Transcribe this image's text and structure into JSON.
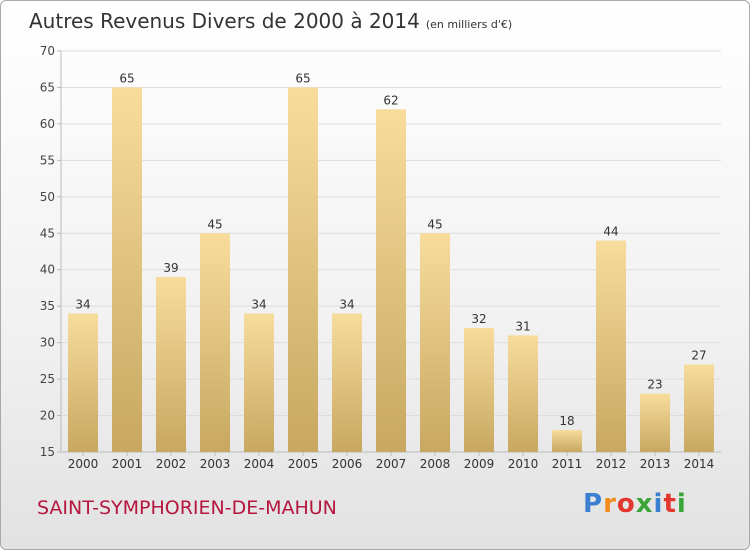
{
  "title": "Autres Revenus Divers de 2000 à 2014",
  "subtitle": "(en milliers d'€)",
  "location": "SAINT-SYMPHORIEN-DE-MAHUN",
  "logo_text": "Proxiti",
  "colors": {
    "bar_light": "#f7dc9c",
    "bar_dark": "#c8a860",
    "grid": "#dddddd",
    "axis": "#bbbbbb",
    "location_text": "#b5163e"
  },
  "chart_data": {
    "type": "bar",
    "categories": [
      "2000",
      "2001",
      "2002",
      "2003",
      "2004",
      "2005",
      "2006",
      "2007",
      "2008",
      "2009",
      "2010",
      "2011",
      "2012",
      "2013",
      "2014"
    ],
    "values": [
      34,
      65,
      39,
      45,
      34,
      65,
      34,
      62,
      45,
      32,
      31,
      18,
      44,
      23,
      27
    ],
    "ylim": [
      15,
      70
    ],
    "yticks": [
      15,
      20,
      25,
      30,
      35,
      40,
      45,
      50,
      55,
      60,
      65,
      70
    ],
    "grid": true,
    "xlabel": "",
    "ylabel": ""
  }
}
